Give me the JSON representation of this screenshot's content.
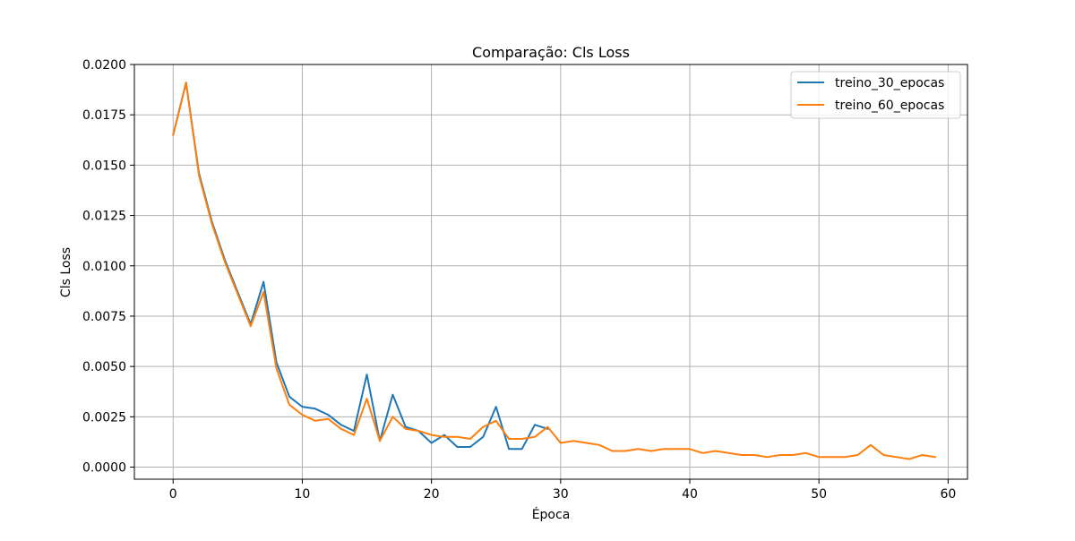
{
  "chart_data": {
    "type": "line",
    "title": "Comparação: Cls Loss",
    "xlabel": "Época",
    "ylabel": "Cls Loss",
    "xlim": [
      -3,
      61.5
    ],
    "ylim": [
      -0.0006,
      0.02
    ],
    "grid": true,
    "legend_position": "top-right",
    "x_ticks": [
      0,
      10,
      20,
      30,
      40,
      50,
      60
    ],
    "x_tick_labels": [
      "0",
      "10",
      "20",
      "30",
      "40",
      "50",
      "60"
    ],
    "y_ticks": [
      0,
      0.0025,
      0.005,
      0.0075,
      0.01,
      0.0125,
      0.015,
      0.0175,
      0.02
    ],
    "y_tick_labels": [
      "0.0000",
      "0.0025",
      "0.0050",
      "0.0075",
      "0.0100",
      "0.0125",
      "0.0150",
      "0.0175",
      "0.0200"
    ],
    "series": [
      {
        "name": "treino_30_epocas",
        "color": "#1f77b4",
        "x": [
          0,
          1,
          2,
          3,
          4,
          5,
          6,
          7,
          8,
          9,
          10,
          11,
          12,
          13,
          14,
          15,
          16,
          17,
          18,
          19,
          20,
          21,
          22,
          23,
          24,
          25,
          26,
          27,
          28,
          29
        ],
        "values": [
          0.0165,
          0.0191,
          0.0146,
          0.0122,
          0.0103,
          0.0087,
          0.0071,
          0.0092,
          0.0052,
          0.0035,
          0.003,
          0.0029,
          0.0026,
          0.0021,
          0.0018,
          0.0046,
          0.0013,
          0.0036,
          0.002,
          0.0018,
          0.0012,
          0.0016,
          0.001,
          0.001,
          0.0015,
          0.003,
          0.0009,
          0.0009,
          0.0021,
          0.0019
        ]
      },
      {
        "name": "treino_60_epocas",
        "color": "#ff7f0e",
        "x": [
          0,
          1,
          2,
          3,
          4,
          5,
          6,
          7,
          8,
          9,
          10,
          11,
          12,
          13,
          14,
          15,
          16,
          17,
          18,
          19,
          20,
          21,
          22,
          23,
          24,
          25,
          26,
          27,
          28,
          29,
          30,
          31,
          32,
          33,
          34,
          35,
          36,
          37,
          38,
          39,
          40,
          41,
          42,
          43,
          44,
          45,
          46,
          47,
          48,
          49,
          50,
          51,
          52,
          53,
          54,
          55,
          56,
          57,
          58,
          59
        ],
        "values": [
          0.0165,
          0.0191,
          0.0145,
          0.0121,
          0.0102,
          0.0086,
          0.007,
          0.0087,
          0.0049,
          0.0031,
          0.0026,
          0.0023,
          0.0024,
          0.0019,
          0.0016,
          0.0034,
          0.0013,
          0.0025,
          0.0019,
          0.0018,
          0.0016,
          0.0015,
          0.0015,
          0.0014,
          0.002,
          0.0023,
          0.0014,
          0.0014,
          0.0015,
          0.002,
          0.0012,
          0.0013,
          0.0012,
          0.0011,
          0.0008,
          0.0008,
          0.0009,
          0.0008,
          0.0009,
          0.0009,
          0.0009,
          0.0007,
          0.0008,
          0.0007,
          0.0006,
          0.0006,
          0.0005,
          0.0006,
          0.0006,
          0.0007,
          0.0005,
          0.0005,
          0.0005,
          0.0006,
          0.0011,
          0.0006,
          0.0005,
          0.0004,
          0.0006,
          0.0005
        ]
      }
    ]
  }
}
